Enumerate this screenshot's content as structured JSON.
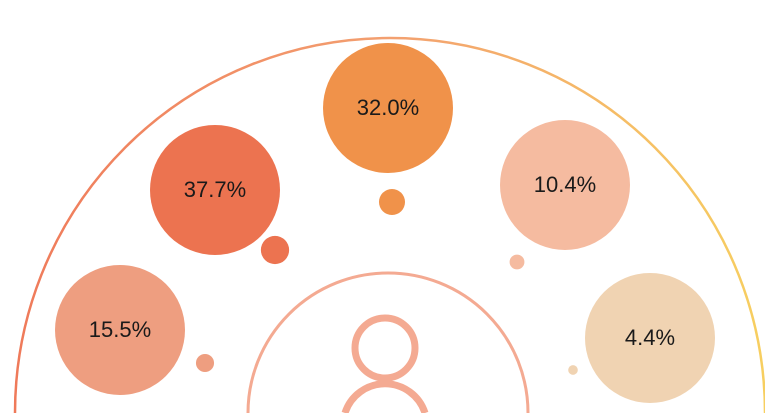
{
  "chart_data": {
    "type": "bubble",
    "values": [
      15.5,
      37.7,
      32.0,
      10.4,
      4.4
    ],
    "value_labels": [
      "15.5%",
      "37.7%",
      "32.0%",
      "10.4%",
      "4.4%"
    ],
    "colors": [
      "#ee9e80",
      "#ec7350",
      "#f0924a",
      "#f5bba0",
      "#f0d3b2"
    ]
  }
}
